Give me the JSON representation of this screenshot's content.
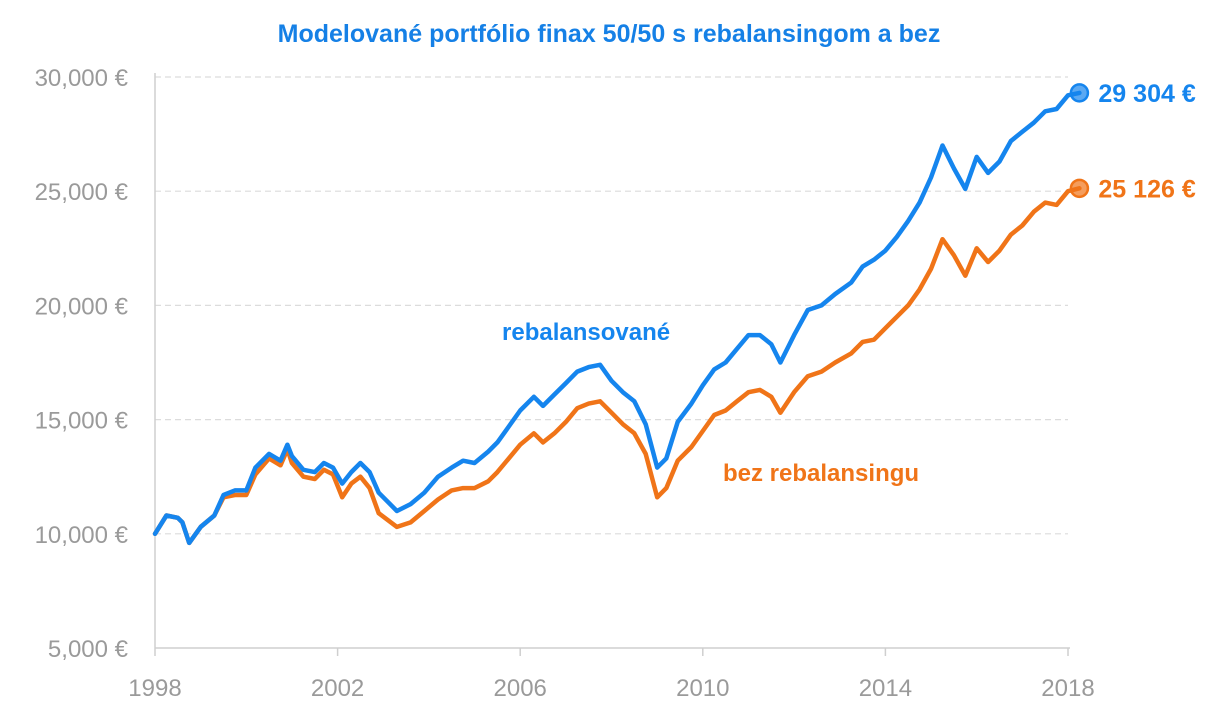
{
  "chart_data": {
    "type": "line",
    "title": "Modelované portfólio finax 50/50 s rebalansingom a bez",
    "xlabel": "",
    "ylabel": "",
    "xlim": [
      1998,
      2018.2
    ],
    "ylim": [
      5000,
      30000
    ],
    "x_ticks": [
      1998,
      2002,
      2006,
      2010,
      2014,
      2018
    ],
    "x_tick_labels": [
      "1998",
      "2002",
      "2006",
      "2010",
      "2014",
      "2018"
    ],
    "y_ticks": [
      5000,
      10000,
      15000,
      20000,
      25000,
      30000
    ],
    "y_tick_labels": [
      "5,000 €",
      "10,000 €",
      "15,000 €",
      "20,000 €",
      "25,000 €",
      "30,000 €"
    ],
    "grid": true,
    "series": [
      {
        "name": "rebalansované",
        "color": "#1585EE",
        "end_label": "29 304 €",
        "points": [
          [
            1998.0,
            10000
          ],
          [
            1998.25,
            10800
          ],
          [
            1998.5,
            10700
          ],
          [
            1998.6,
            10500
          ],
          [
            1998.75,
            9600
          ],
          [
            1999.0,
            10300
          ],
          [
            1999.3,
            10800
          ],
          [
            1999.5,
            11700
          ],
          [
            1999.75,
            11900
          ],
          [
            2000.0,
            11900
          ],
          [
            2000.2,
            12900
          ],
          [
            2000.5,
            13500
          ],
          [
            2000.75,
            13200
          ],
          [
            2000.9,
            13900
          ],
          [
            2001.0,
            13400
          ],
          [
            2001.25,
            12800
          ],
          [
            2001.5,
            12700
          ],
          [
            2001.7,
            13100
          ],
          [
            2001.9,
            12900
          ],
          [
            2002.1,
            12200
          ],
          [
            2002.3,
            12700
          ],
          [
            2002.5,
            13100
          ],
          [
            2002.7,
            12700
          ],
          [
            2002.9,
            11800
          ],
          [
            2003.1,
            11400
          ],
          [
            2003.3,
            11000
          ],
          [
            2003.6,
            11300
          ],
          [
            2003.9,
            11800
          ],
          [
            2004.2,
            12500
          ],
          [
            2004.5,
            12900
          ],
          [
            2004.75,
            13200
          ],
          [
            2005.0,
            13100
          ],
          [
            2005.3,
            13600
          ],
          [
            2005.5,
            14000
          ],
          [
            2005.75,
            14700
          ],
          [
            2006.0,
            15400
          ],
          [
            2006.3,
            16000
          ],
          [
            2006.5,
            15600
          ],
          [
            2006.75,
            16100
          ],
          [
            2007.0,
            16600
          ],
          [
            2007.25,
            17100
          ],
          [
            2007.5,
            17300
          ],
          [
            2007.75,
            17400
          ],
          [
            2008.0,
            16700
          ],
          [
            2008.25,
            16200
          ],
          [
            2008.5,
            15800
          ],
          [
            2008.75,
            14800
          ],
          [
            2009.0,
            12900
          ],
          [
            2009.2,
            13300
          ],
          [
            2009.45,
            14900
          ],
          [
            2009.75,
            15700
          ],
          [
            2010.0,
            16500
          ],
          [
            2010.25,
            17200
          ],
          [
            2010.5,
            17500
          ],
          [
            2010.75,
            18100
          ],
          [
            2011.0,
            18700
          ],
          [
            2011.25,
            18700
          ],
          [
            2011.5,
            18300
          ],
          [
            2011.7,
            17500
          ],
          [
            2012.0,
            18700
          ],
          [
            2012.3,
            19800
          ],
          [
            2012.6,
            20000
          ],
          [
            2012.9,
            20500
          ],
          [
            2013.25,
            21000
          ],
          [
            2013.5,
            21700
          ],
          [
            2013.75,
            22000
          ],
          [
            2014.0,
            22400
          ],
          [
            2014.25,
            23000
          ],
          [
            2014.5,
            23700
          ],
          [
            2014.75,
            24500
          ],
          [
            2015.0,
            25600
          ],
          [
            2015.25,
            27000
          ],
          [
            2015.5,
            26000
          ],
          [
            2015.75,
            25100
          ],
          [
            2016.0,
            26500
          ],
          [
            2016.25,
            25800
          ],
          [
            2016.5,
            26300
          ],
          [
            2016.75,
            27200
          ],
          [
            2017.0,
            27600
          ],
          [
            2017.25,
            28000
          ],
          [
            2017.5,
            28500
          ],
          [
            2017.75,
            28600
          ],
          [
            2018.0,
            29200
          ],
          [
            2018.25,
            29304
          ]
        ]
      },
      {
        "name": "bez rebalansingu",
        "color": "#F07418",
        "end_label": "25 126 €",
        "points": [
          [
            1998.0,
            10000
          ],
          [
            1998.25,
            10800
          ],
          [
            1998.5,
            10700
          ],
          [
            1998.6,
            10500
          ],
          [
            1998.75,
            9600
          ],
          [
            1999.0,
            10300
          ],
          [
            1999.3,
            10800
          ],
          [
            1999.5,
            11600
          ],
          [
            1999.75,
            11700
          ],
          [
            2000.0,
            11700
          ],
          [
            2000.2,
            12600
          ],
          [
            2000.5,
            13300
          ],
          [
            2000.75,
            13000
          ],
          [
            2000.9,
            13700
          ],
          [
            2001.0,
            13100
          ],
          [
            2001.25,
            12500
          ],
          [
            2001.5,
            12400
          ],
          [
            2001.7,
            12800
          ],
          [
            2001.9,
            12600
          ],
          [
            2002.1,
            11600
          ],
          [
            2002.3,
            12200
          ],
          [
            2002.5,
            12500
          ],
          [
            2002.7,
            12000
          ],
          [
            2002.9,
            10900
          ],
          [
            2003.1,
            10600
          ],
          [
            2003.3,
            10300
          ],
          [
            2003.6,
            10500
          ],
          [
            2003.9,
            11000
          ],
          [
            2004.2,
            11500
          ],
          [
            2004.5,
            11900
          ],
          [
            2004.75,
            12000
          ],
          [
            2005.0,
            12000
          ],
          [
            2005.3,
            12300
          ],
          [
            2005.5,
            12700
          ],
          [
            2005.75,
            13300
          ],
          [
            2006.0,
            13900
          ],
          [
            2006.3,
            14400
          ],
          [
            2006.5,
            14000
          ],
          [
            2006.75,
            14400
          ],
          [
            2007.0,
            14900
          ],
          [
            2007.25,
            15500
          ],
          [
            2007.5,
            15700
          ],
          [
            2007.75,
            15800
          ],
          [
            2008.0,
            15300
          ],
          [
            2008.25,
            14800
          ],
          [
            2008.5,
            14400
          ],
          [
            2008.75,
            13500
          ],
          [
            2009.0,
            11600
          ],
          [
            2009.2,
            12000
          ],
          [
            2009.45,
            13200
          ],
          [
            2009.75,
            13800
          ],
          [
            2010.0,
            14500
          ],
          [
            2010.25,
            15200
          ],
          [
            2010.5,
            15400
          ],
          [
            2010.75,
            15800
          ],
          [
            2011.0,
            16200
          ],
          [
            2011.25,
            16300
          ],
          [
            2011.5,
            16000
          ],
          [
            2011.7,
            15300
          ],
          [
            2012.0,
            16200
          ],
          [
            2012.3,
            16900
          ],
          [
            2012.6,
            17100
          ],
          [
            2012.9,
            17500
          ],
          [
            2013.25,
            17900
          ],
          [
            2013.5,
            18400
          ],
          [
            2013.75,
            18500
          ],
          [
            2014.0,
            19000
          ],
          [
            2014.25,
            19500
          ],
          [
            2014.5,
            20000
          ],
          [
            2014.75,
            20700
          ],
          [
            2015.0,
            21600
          ],
          [
            2015.25,
            22900
          ],
          [
            2015.5,
            22200
          ],
          [
            2015.75,
            21300
          ],
          [
            2016.0,
            22500
          ],
          [
            2016.25,
            21900
          ],
          [
            2016.5,
            22400
          ],
          [
            2016.75,
            23100
          ],
          [
            2017.0,
            23500
          ],
          [
            2017.25,
            24100
          ],
          [
            2017.5,
            24500
          ],
          [
            2017.75,
            24400
          ],
          [
            2018.0,
            25000
          ],
          [
            2018.25,
            25126
          ]
        ]
      }
    ]
  }
}
